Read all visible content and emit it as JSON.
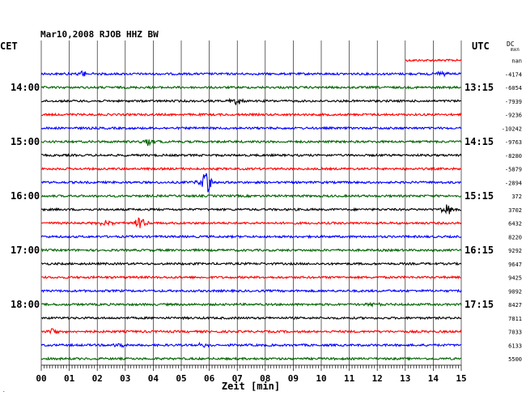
{
  "chart_data": {
    "type": "line",
    "title": "Mar10,2008   RJOB HHZ BW",
    "left_axis_label": "CET",
    "right_axis_label": "UTC",
    "dc_header": "DC",
    "dc_header_sub": "mxn",
    "xlabel": "Zeit [min]",
    "xlim": [
      0,
      15
    ],
    "x_ticks": [
      "00",
      "01",
      "02",
      "03",
      "04",
      "05",
      "06",
      "07",
      "08",
      "09",
      "10",
      "11",
      "12",
      "13",
      "14",
      "15"
    ],
    "left_hour_labels": [
      {
        "row": 2,
        "label": "14:00"
      },
      {
        "row": 6,
        "label": "15:00"
      },
      {
        "row": 10,
        "label": "16:00"
      },
      {
        "row": 14,
        "label": "17:00"
      },
      {
        "row": 18,
        "label": "18:00"
      }
    ],
    "right_hour_labels": [
      {
        "row": 2,
        "label": "13:15"
      },
      {
        "row": 6,
        "label": "14:15"
      },
      {
        "row": 10,
        "label": "15:15"
      },
      {
        "row": 14,
        "label": "16:15"
      },
      {
        "row": 18,
        "label": "17:15"
      }
    ],
    "colors": {
      "red": "#ff0000",
      "blue": "#0000ff",
      "green": "#006400",
      "black": "#000000",
      "grid": "#000000"
    },
    "traces": [
      {
        "color": "red",
        "dc": "nan",
        "start_min": 13.0
      },
      {
        "color": "blue",
        "dc": "-4174"
      },
      {
        "color": "green",
        "dc": "-6054"
      },
      {
        "color": "black",
        "dc": "-7939"
      },
      {
        "color": "red",
        "dc": "-9236"
      },
      {
        "color": "blue",
        "dc": "-10242"
      },
      {
        "color": "green",
        "dc": "-9763"
      },
      {
        "color": "black",
        "dc": "-8280"
      },
      {
        "color": "red",
        "dc": "-5879"
      },
      {
        "color": "blue",
        "dc": "-2894"
      },
      {
        "color": "green",
        "dc": "372"
      },
      {
        "color": "black",
        "dc": "3702"
      },
      {
        "color": "red",
        "dc": "6432"
      },
      {
        "color": "blue",
        "dc": "8220"
      },
      {
        "color": "green",
        "dc": "9292"
      },
      {
        "color": "black",
        "dc": "9647"
      },
      {
        "color": "red",
        "dc": "9425"
      },
      {
        "color": "blue",
        "dc": "9092"
      },
      {
        "color": "green",
        "dc": "8427"
      },
      {
        "color": "black",
        "dc": "7811"
      },
      {
        "color": "red",
        "dc": "7033"
      },
      {
        "color": "blue",
        "dc": "6133"
      },
      {
        "color": "green",
        "dc": "5500"
      }
    ],
    "events": [
      {
        "row": 1,
        "min": 1.5,
        "amp": 0.45
      },
      {
        "row": 1,
        "min": 14.3,
        "amp": 0.5
      },
      {
        "row": 3,
        "min": 7.0,
        "amp": 0.6
      },
      {
        "row": 6,
        "min": 3.8,
        "amp": 0.5
      },
      {
        "row": 9,
        "min": 5.9,
        "amp": 1.6
      },
      {
        "row": 11,
        "min": 14.5,
        "amp": 0.8
      },
      {
        "row": 12,
        "min": 3.5,
        "amp": 0.9
      },
      {
        "row": 12,
        "min": 2.3,
        "amp": 0.4
      },
      {
        "row": 18,
        "min": 11.8,
        "amp": 0.4
      },
      {
        "row": 20,
        "min": 0.4,
        "amp": 0.6
      },
      {
        "row": 21,
        "min": 5.8,
        "amp": 0.4
      },
      {
        "row": 21,
        "min": 2.8,
        "amp": 0.3
      }
    ]
  }
}
